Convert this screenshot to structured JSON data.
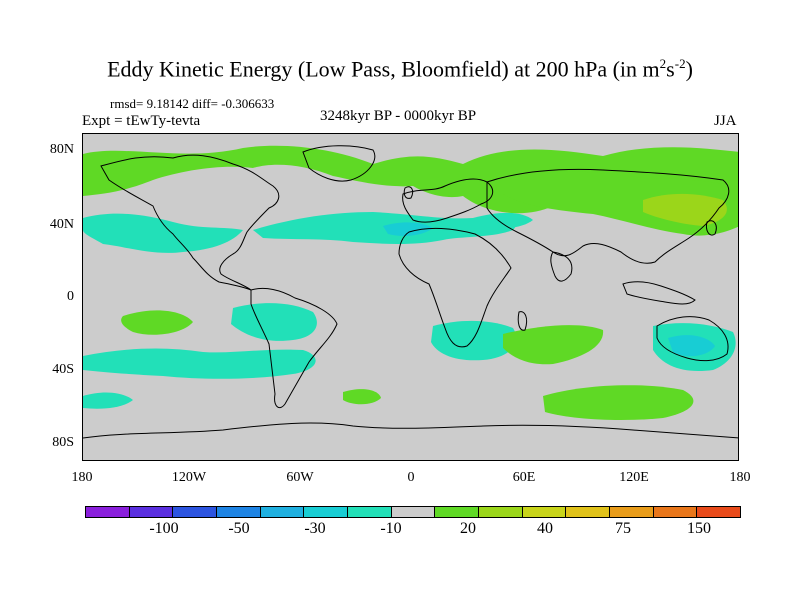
{
  "title": {
    "text": "Eddy Kinetic Energy (Low Pass, Bloomfield) at 200 hPa (in m",
    "sup1": "2",
    "mid": "s",
    "sup2": "-2",
    "close": ")"
  },
  "stats": "rmsd= 9.18142 diff= -0.306633",
  "experiment": "Expt = tEwTy-tevta",
  "period": "3248kyr BP - 0000kyr BP",
  "season": "JJA",
  "axes": {
    "lat_labels": [
      "80N",
      "40N",
      "0",
      "40S",
      "80S"
    ],
    "lon_labels": [
      "180",
      "120W",
      "60W",
      "0",
      "60E",
      "120E",
      "180"
    ]
  },
  "colorbar": {
    "colors": [
      "#8a1fdc",
      "#5a2fe0",
      "#2c54e0",
      "#1e84e4",
      "#1fb0e0",
      "#18cdd4",
      "#22e0b8",
      "#cccccc",
      "#5fd925",
      "#9bd61a",
      "#c8d41a",
      "#e0c21a",
      "#e89c1a",
      "#e8761a",
      "#e84a1a"
    ],
    "labels": [
      "-100",
      "-50",
      "-30",
      "-10",
      "20",
      "40",
      "75",
      "150"
    ]
  },
  "map": {
    "background": "#cccccc",
    "land_outline": "#000000",
    "anomaly_colors": {
      "neg_10_30": "#22e0b8",
      "neg_30_50": "#18cdd4",
      "pos_10_20": "#5fd925",
      "pos_20_40": "#9bd61a"
    }
  }
}
